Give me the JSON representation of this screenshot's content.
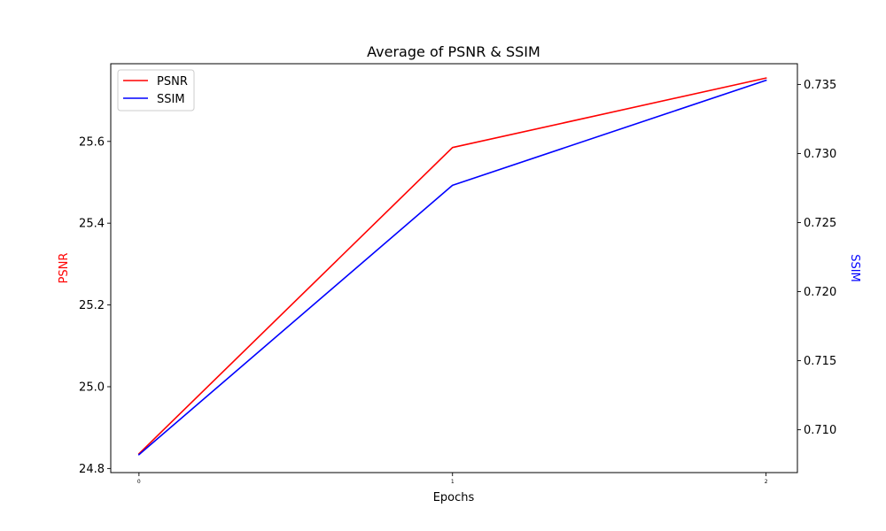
{
  "chart_data": {
    "type": "line",
    "title": "Average of PSNR & SSIM",
    "xlabel": "Epochs",
    "ylabel_left": "PSNR",
    "ylabel_right": "SSIM",
    "x": [
      0,
      1,
      2
    ],
    "x_ticks": [
      "0",
      "1",
      "2"
    ],
    "xlim": [
      -0.09,
      2.1
    ],
    "grid": false,
    "legend_position": "top-left",
    "series": [
      {
        "name": "PSNR",
        "axis": "left",
        "color": "#ff0000",
        "values": [
          24.836,
          25.585,
          25.755
        ]
      },
      {
        "name": "SSIM",
        "axis": "right",
        "color": "#0000ff",
        "values": [
          0.7082,
          0.7277,
          0.7353
        ]
      }
    ],
    "left_axis": {
      "ylim": [
        24.79,
        25.79
      ],
      "ticks": [
        "24.8",
        "25.0",
        "25.2",
        "25.4",
        "25.6"
      ],
      "label_color": "#ff0000"
    },
    "right_axis": {
      "ylim": [
        0.7069,
        0.7365
      ],
      "ticks": [
        "0.710",
        "0.715",
        "0.720",
        "0.725",
        "0.730",
        "0.735"
      ],
      "label_color": "#0000ff"
    }
  }
}
